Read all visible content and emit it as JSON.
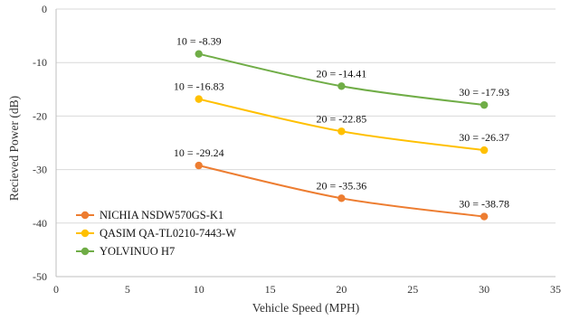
{
  "chart_data": {
    "type": "line",
    "title": "",
    "xlabel": "Vehicle Speed (MPH)",
    "ylabel": "Recieved Power (dB)",
    "xlim": [
      0,
      35
    ],
    "ylim": [
      -50,
      0
    ],
    "xticks": [
      0,
      5,
      10,
      15,
      20,
      25,
      30,
      35
    ],
    "yticks": [
      0,
      -10,
      -20,
      -30,
      -40,
      -50
    ],
    "grid": "horizontal",
    "legend_position": "bottom-left",
    "series": [
      {
        "name": "NICHIA NSDW570GS-K1",
        "color": "#ed7d31",
        "x": [
          10,
          20,
          30
        ],
        "y": [
          -29.24,
          -35.36,
          -38.78
        ],
        "labels": [
          "10 = -29.24",
          "20 = -35.36",
          "30 = -38.78"
        ]
      },
      {
        "name": "QASIM QA-TL0210-7443-W",
        "color": "#ffc000",
        "x": [
          10,
          20,
          30
        ],
        "y": [
          -16.83,
          -22.85,
          -26.37
        ],
        "labels": [
          "10 = -16.83",
          "20 = -22.85",
          "30 = -26.37"
        ]
      },
      {
        "name": "YOLVINUO H7",
        "color": "#70ad47",
        "x": [
          10,
          20,
          30
        ],
        "y": [
          -8.39,
          -14.41,
          -17.93
        ],
        "labels": [
          "10 = -8.39",
          "20 = -14.41",
          "30 = -17.93"
        ]
      }
    ]
  }
}
